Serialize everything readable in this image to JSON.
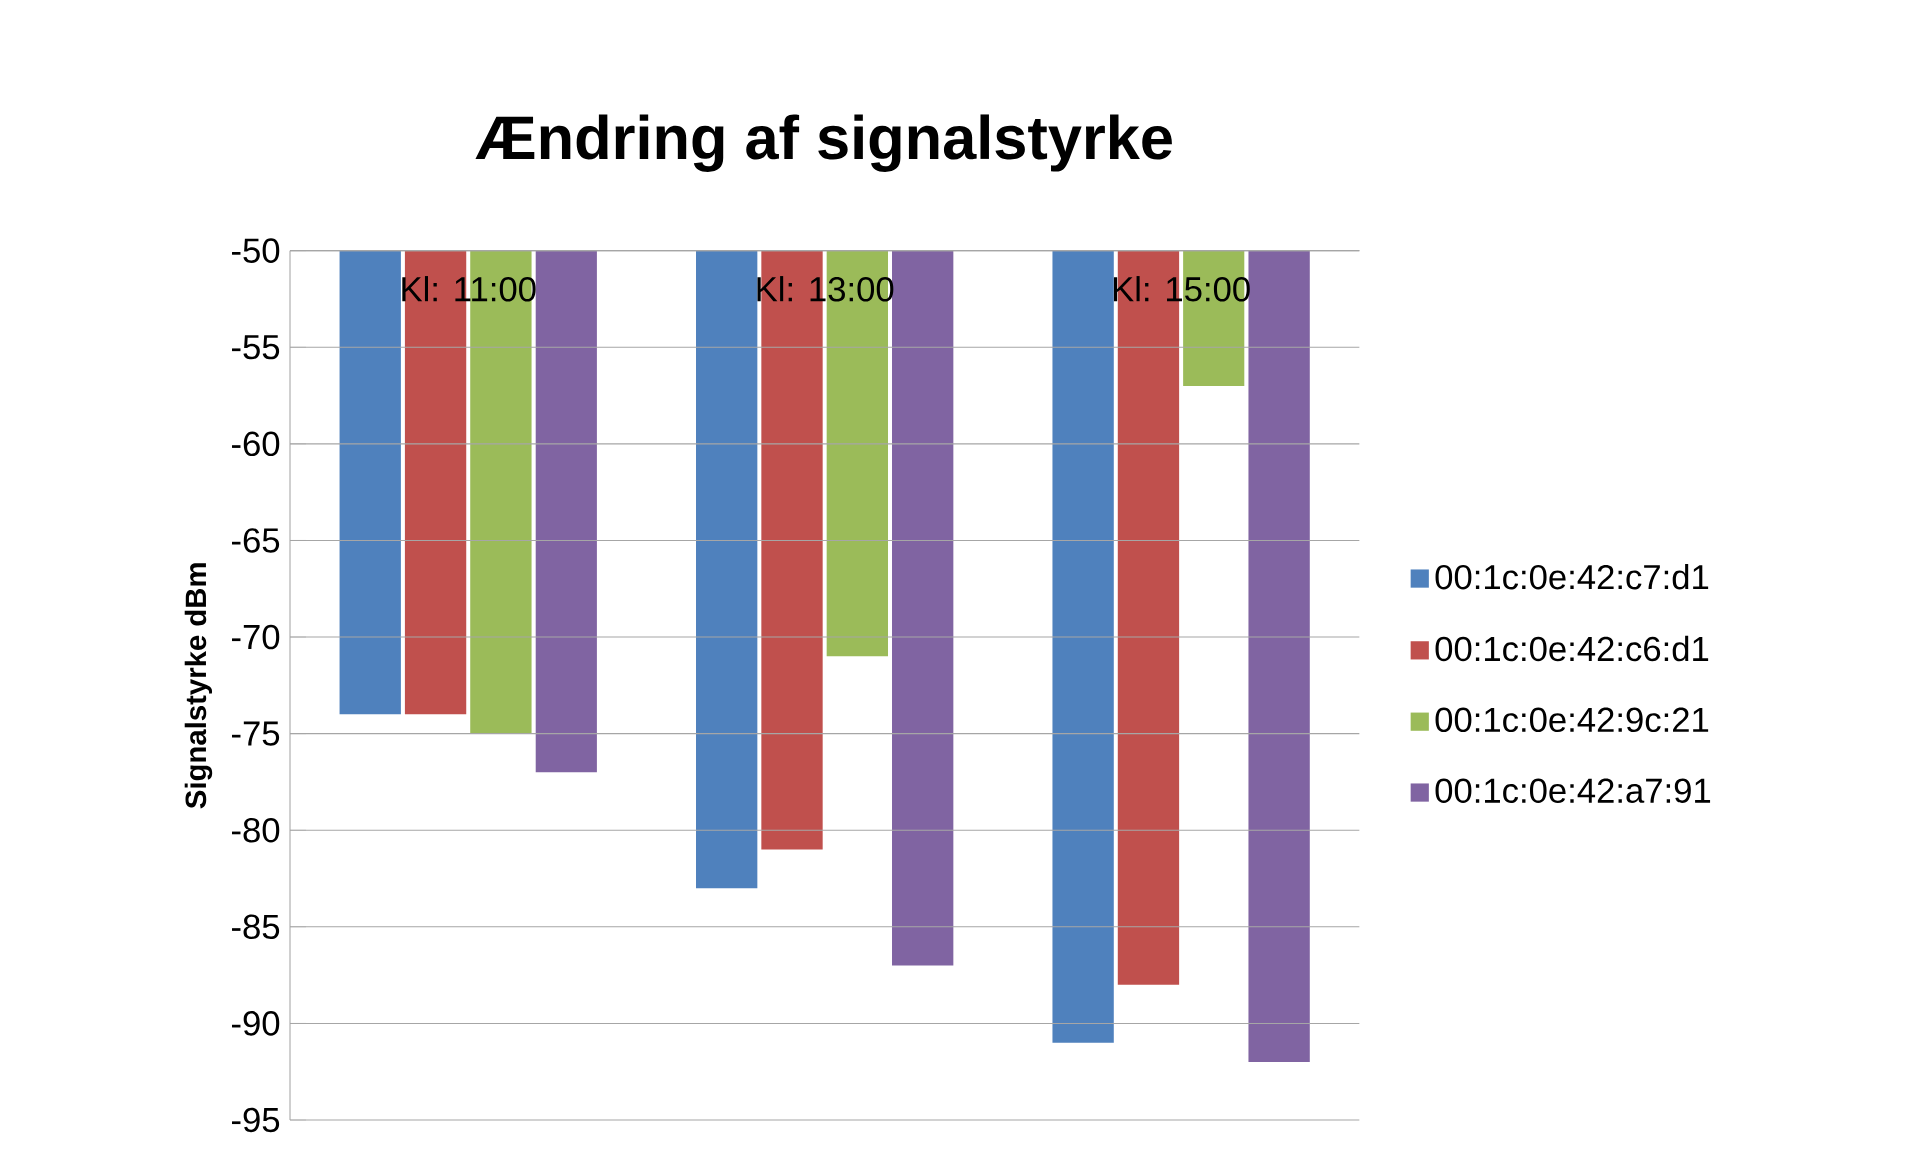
{
  "chart_data": {
    "type": "bar",
    "title": "Ændring af signalstyrke",
    "ylabel": "Signalstyrke dBm",
    "categories": [
      "Kl: 11:00",
      "Kl: 13:00",
      "Kl: 15:00"
    ],
    "series": [
      {
        "name": "00:1c:0e:42:c7:d1",
        "color": "#4f81bd",
        "values": [
          -74,
          -83,
          -91
        ]
      },
      {
        "name": "00:1c:0e:42:c6:d1",
        "color": "#c0504d",
        "values": [
          -74,
          -81,
          -88
        ]
      },
      {
        "name": "00:1c:0e:42:9c:21",
        "color": "#9bbb59",
        "values": [
          -75,
          -71,
          -57
        ]
      },
      {
        "name": "00:1c:0e:42:a7:91",
        "color": "#8064a2",
        "values": [
          -77,
          -87,
          -92
        ]
      }
    ],
    "ylim": [
      -95,
      -50
    ],
    "yticks": [
      -95,
      -90,
      -85,
      -80,
      -75,
      -70,
      -65,
      -60,
      -55,
      -50
    ],
    "grid": "y",
    "legend": "right"
  }
}
